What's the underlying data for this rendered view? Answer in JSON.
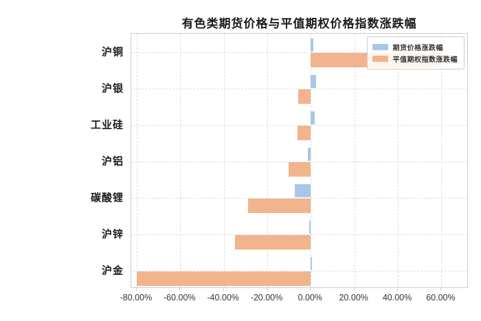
{
  "chart_data": {
    "type": "bar",
    "orientation": "horizontal",
    "title": "有色类期货价格与平值期权价格指数涨跌幅",
    "categories": [
      "沪铜",
      "沪银",
      "工业硅",
      "沪铝",
      "碳酸锂",
      "沪锌",
      "沪金"
    ],
    "series": [
      {
        "name": "期货价格涨跌幅",
        "color": "#a8c7e7",
        "values": [
          1.2,
          2.4,
          1.7,
          -1.5,
          -7.4,
          -0.9,
          0.5
        ]
      },
      {
        "name": "平值期权指数涨跌幅",
        "color": "#f1b48c",
        "values": [
          60.0,
          -5.9,
          -6.2,
          -10.2,
          -28.9,
          -34.8,
          -80.0
        ]
      }
    ],
    "unit": "%",
    "x_ticks": [
      -80,
      -60,
      -40,
      -20,
      0,
      20,
      40,
      60
    ],
    "x_tick_labels": [
      "-80.00%",
      "-60.00%",
      "-40.00%",
      "-20.00%",
      "0.00%",
      "20.00%",
      "40.00%",
      "60.00%"
    ],
    "xlim": [
      -82.5,
      72.5
    ],
    "grid": true,
    "legend_position": "upper right",
    "colors": {
      "grid": "#dcdcdc",
      "spine": "#cccccc",
      "background": "#ffffff",
      "text": "#262626"
    }
  }
}
